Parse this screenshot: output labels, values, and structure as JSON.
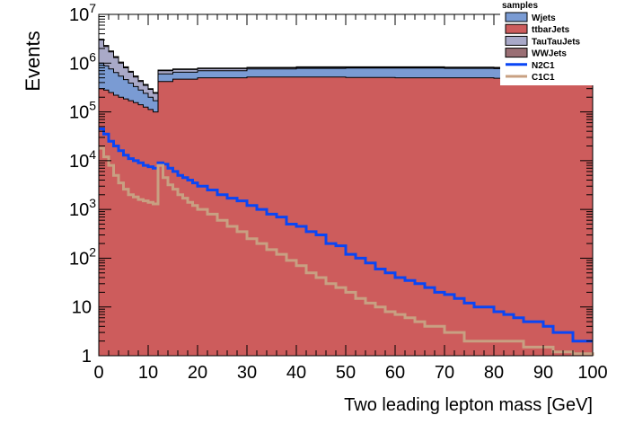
{
  "chart_data": {
    "type": "histogram",
    "xlabel": "Two leading lepton mass [GeV]",
    "ylabel": "Events",
    "xlim": [
      0,
      100
    ],
    "ylim": [
      1,
      10000000
    ],
    "y_scale": "log",
    "x_ticks": [
      "0",
      "10",
      "20",
      "30",
      "40",
      "50",
      "60",
      "70",
      "80",
      "90",
      "100"
    ],
    "y_ticks": [
      {
        "base": "1",
        "exp": "",
        "value": 1
      },
      {
        "base": "10",
        "exp": "",
        "value": 10
      },
      {
        "base": "10",
        "exp": "2",
        "value": 100
      },
      {
        "base": "10",
        "exp": "3",
        "value": 1000
      },
      {
        "base": "10",
        "exp": "4",
        "value": 10000
      },
      {
        "base": "10",
        "exp": "5",
        "value": 100000
      },
      {
        "base": "10",
        "exp": "6",
        "value": 1000000
      },
      {
        "base": "10",
        "exp": "7",
        "value": 10000000
      }
    ],
    "legend_title": "samples",
    "legend_position": "top-right",
    "stacked_series": [
      {
        "name": "ttbarJets",
        "color": "#cd5c5c",
        "points": [
          [
            0,
            300000
          ],
          [
            1,
            280000
          ],
          [
            2,
            250000
          ],
          [
            3,
            220000
          ],
          [
            4,
            200000
          ],
          [
            5,
            185000
          ],
          [
            6,
            170000
          ],
          [
            7,
            155000
          ],
          [
            8,
            140000
          ],
          [
            9,
            125000
          ],
          [
            10,
            112000
          ],
          [
            11,
            100000
          ],
          [
            12,
            420000
          ],
          [
            15,
            470000
          ],
          [
            20,
            500000
          ],
          [
            30,
            520000
          ],
          [
            40,
            520000
          ],
          [
            50,
            510000
          ],
          [
            60,
            500000
          ],
          [
            70,
            500000
          ],
          [
            80,
            490000
          ],
          [
            90,
            480000
          ],
          [
            100,
            470000
          ]
        ]
      },
      {
        "name": "Wjets",
        "color": "#7a9bd3",
        "points": [
          [
            0,
            1000000
          ],
          [
            1,
            880000
          ],
          [
            2,
            760000
          ],
          [
            3,
            640000
          ],
          [
            4,
            540000
          ],
          [
            5,
            460000
          ],
          [
            6,
            390000
          ],
          [
            7,
            330000
          ],
          [
            8,
            280000
          ],
          [
            9,
            240000
          ],
          [
            10,
            200000
          ],
          [
            11,
            170000
          ],
          [
            12,
            600000
          ],
          [
            15,
            650000
          ],
          [
            20,
            700000
          ],
          [
            30,
            760000
          ],
          [
            40,
            780000
          ],
          [
            50,
            790000
          ],
          [
            60,
            790000
          ],
          [
            70,
            780000
          ],
          [
            80,
            770000
          ],
          [
            90,
            760000
          ],
          [
            100,
            750000
          ]
        ]
      },
      {
        "name": "TauTauJets",
        "color": "#a9a9c8",
        "points": [
          [
            0,
            3000000
          ],
          [
            1,
            2200000
          ],
          [
            2,
            1700000
          ],
          [
            3,
            1300000
          ],
          [
            4,
            1000000
          ],
          [
            5,
            800000
          ],
          [
            6,
            650000
          ],
          [
            7,
            520000
          ],
          [
            8,
            420000
          ],
          [
            9,
            350000
          ],
          [
            10,
            290000
          ],
          [
            11,
            240000
          ],
          [
            12,
            700000
          ],
          [
            15,
            740000
          ],
          [
            20,
            770000
          ],
          [
            30,
            800000
          ],
          [
            40,
            820000
          ],
          [
            50,
            820000
          ],
          [
            60,
            820000
          ],
          [
            70,
            810000
          ],
          [
            80,
            800000
          ],
          [
            90,
            790000
          ],
          [
            100,
            780000
          ]
        ]
      },
      {
        "name": "WWJets",
        "color": "#9a6f74",
        "points": [
          [
            0,
            3100000
          ],
          [
            1,
            2300000
          ],
          [
            2,
            1780000
          ],
          [
            3,
            1360000
          ],
          [
            4,
            1050000
          ],
          [
            5,
            840000
          ],
          [
            6,
            680000
          ],
          [
            7,
            545000
          ],
          [
            8,
            440000
          ],
          [
            9,
            365000
          ],
          [
            10,
            300000
          ],
          [
            11,
            250000
          ],
          [
            12,
            720000
          ],
          [
            15,
            760000
          ],
          [
            20,
            790000
          ],
          [
            30,
            820000
          ],
          [
            40,
            840000
          ],
          [
            50,
            840000
          ],
          [
            60,
            840000
          ],
          [
            70,
            830000
          ],
          [
            80,
            820000
          ],
          [
            90,
            810000
          ],
          [
            100,
            800000
          ]
        ]
      }
    ],
    "overlay_series": [
      {
        "name": "N2C1",
        "color": "#0a46f5",
        "points": [
          [
            0,
            45000
          ],
          [
            1,
            35000
          ],
          [
            2,
            25000
          ],
          [
            3,
            20000
          ],
          [
            4,
            16000
          ],
          [
            5,
            13000
          ],
          [
            6,
            11000
          ],
          [
            7,
            10000
          ],
          [
            8,
            9000
          ],
          [
            9,
            8000
          ],
          [
            10,
            7500
          ],
          [
            11,
            7000
          ],
          [
            12,
            9000
          ],
          [
            13,
            8500
          ],
          [
            14,
            7000
          ],
          [
            15,
            6000
          ],
          [
            16,
            5000
          ],
          [
            17,
            4500
          ],
          [
            18,
            4000
          ],
          [
            19,
            3500
          ],
          [
            20,
            3000
          ],
          [
            22,
            2500
          ],
          [
            24,
            2000
          ],
          [
            26,
            1700
          ],
          [
            28,
            1500
          ],
          [
            30,
            1200
          ],
          [
            32,
            1000
          ],
          [
            34,
            800
          ],
          [
            36,
            700
          ],
          [
            38,
            500
          ],
          [
            40,
            450
          ],
          [
            42,
            350
          ],
          [
            44,
            300
          ],
          [
            46,
            200
          ],
          [
            48,
            180
          ],
          [
            50,
            120
          ],
          [
            52,
            100
          ],
          [
            54,
            80
          ],
          [
            56,
            60
          ],
          [
            58,
            50
          ],
          [
            60,
            40
          ],
          [
            62,
            35
          ],
          [
            64,
            30
          ],
          [
            66,
            25
          ],
          [
            68,
            20
          ],
          [
            70,
            18
          ],
          [
            72,
            15
          ],
          [
            74,
            12
          ],
          [
            76,
            10
          ],
          [
            78,
            10
          ],
          [
            80,
            8
          ],
          [
            82,
            7
          ],
          [
            84,
            6
          ],
          [
            86,
            5
          ],
          [
            88,
            5
          ],
          [
            90,
            4
          ],
          [
            92,
            3
          ],
          [
            94,
            3
          ],
          [
            96,
            2
          ],
          [
            98,
            2
          ],
          [
            100,
            2
          ]
        ]
      },
      {
        "name": "C1C1",
        "color": "#c8a082",
        "points": [
          [
            0,
            18000
          ],
          [
            1,
            12000
          ],
          [
            2,
            8000
          ],
          [
            3,
            5000
          ],
          [
            4,
            3500
          ],
          [
            5,
            2600
          ],
          [
            6,
            2000
          ],
          [
            7,
            1800
          ],
          [
            8,
            1600
          ],
          [
            9,
            1500
          ],
          [
            10,
            1400
          ],
          [
            11,
            1300
          ],
          [
            12,
            8000
          ],
          [
            13,
            4500
          ],
          [
            14,
            3200
          ],
          [
            15,
            2600
          ],
          [
            16,
            2000
          ],
          [
            17,
            1700
          ],
          [
            18,
            1400
          ],
          [
            19,
            1200
          ],
          [
            20,
            1000
          ],
          [
            22,
            800
          ],
          [
            24,
            600
          ],
          [
            26,
            450
          ],
          [
            28,
            350
          ],
          [
            30,
            250
          ],
          [
            32,
            200
          ],
          [
            34,
            150
          ],
          [
            36,
            120
          ],
          [
            38,
            90
          ],
          [
            40,
            70
          ],
          [
            42,
            50
          ],
          [
            44,
            40
          ],
          [
            46,
            30
          ],
          [
            48,
            25
          ],
          [
            50,
            20
          ],
          [
            52,
            15
          ],
          [
            54,
            12
          ],
          [
            56,
            10
          ],
          [
            58,
            8
          ],
          [
            60,
            7
          ],
          [
            62,
            6
          ],
          [
            64,
            5
          ],
          [
            66,
            4
          ],
          [
            68,
            4
          ],
          [
            70,
            3
          ],
          [
            72,
            3
          ],
          [
            74,
            2
          ],
          [
            76,
            2
          ],
          [
            78,
            2
          ],
          [
            80,
            2
          ],
          [
            82,
            2
          ],
          [
            84,
            2
          ],
          [
            86,
            1.5
          ],
          [
            88,
            1.5
          ],
          [
            90,
            1.5
          ],
          [
            92,
            1.2
          ],
          [
            94,
            1.2
          ],
          [
            96,
            1.1
          ],
          [
            98,
            1.1
          ],
          [
            100,
            1
          ]
        ]
      }
    ],
    "legend_entries": [
      {
        "label": "Wjets",
        "kind": "box",
        "color": "#7a9bd3"
      },
      {
        "label": "ttbarJets",
        "kind": "box",
        "color": "#cd5c5c"
      },
      {
        "label": "TauTauJets",
        "kind": "box",
        "color": "#a9a9c8"
      },
      {
        "label": "WWJets",
        "kind": "box",
        "color": "#9a6f74"
      },
      {
        "label": "N2C1",
        "kind": "line",
        "color": "#0a46f5"
      },
      {
        "label": "C1C1",
        "kind": "line",
        "color": "#c8a082"
      }
    ]
  }
}
